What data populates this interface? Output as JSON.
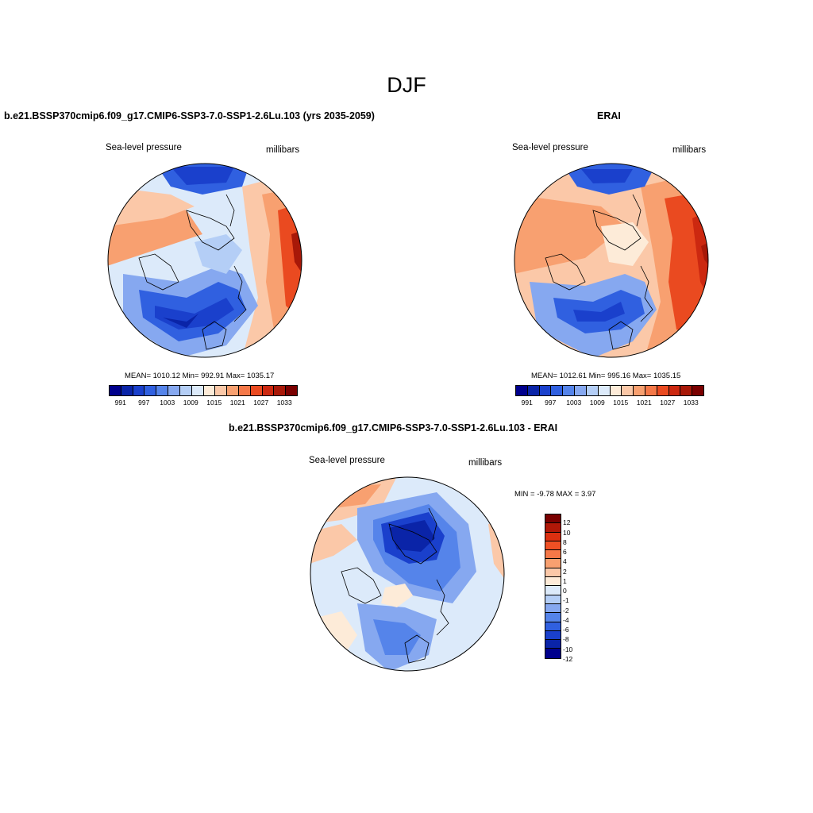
{
  "page": {
    "title": "DJF"
  },
  "panels": [
    {
      "title": "b.e21.BSSP370cmip6.f09_g17.CMIP6-SSP3-7.0-SSP1-2.6Lu.103 (yrs 2035-2059)",
      "left_label": "Sea-level pressure",
      "right_label": "millibars",
      "stats": "MEAN= 1010.12  Min= 992.91  Max= 1035.17"
    },
    {
      "title": "ERAI",
      "left_label": "Sea-level pressure",
      "right_label": "millibars",
      "stats": "MEAN= 1012.61  Min= 995.16  Max= 1035.15"
    },
    {
      "title": "b.e21.BSSP370cmip6.f09_g17.CMIP6-SSP3-7.0-SSP1-2.6Lu.103 - ERAI",
      "left_label": "Sea-level pressure",
      "right_label": "millibars",
      "stats": "MIN =  -9.78 MAX =   3.97"
    }
  ],
  "colorbar_abs": {
    "tick_labels": [
      "991",
      "997",
      "1003",
      "1009",
      "1015",
      "1021",
      "1027",
      "1033"
    ],
    "colors": [
      "#00008c",
      "#0a24a8",
      "#1a40cc",
      "#3060e0",
      "#5584ea",
      "#86a8f0",
      "#b4cef6",
      "#dceafa",
      "#fdebd8",
      "#fbc8a8",
      "#f8a070",
      "#f57848",
      "#ea4a20",
      "#cc2810",
      "#a81808",
      "#7a0000"
    ]
  },
  "colorbar_diff": {
    "tick_labels": [
      "12",
      "10",
      "8",
      "6",
      "4",
      "2",
      "1",
      "0",
      "-1",
      "-2",
      "-4",
      "-6",
      "-8",
      "-10",
      "-12"
    ],
    "colors": [
      "#7a0000",
      "#b01808",
      "#dc3010",
      "#f05024",
      "#f57848",
      "#f8a070",
      "#fbc8a8",
      "#fdebd8",
      "#dceafa",
      "#b4cef6",
      "#86a8f0",
      "#5584ea",
      "#3060e0",
      "#1a40cc",
      "#0a24a8",
      "#00008c"
    ]
  }
}
